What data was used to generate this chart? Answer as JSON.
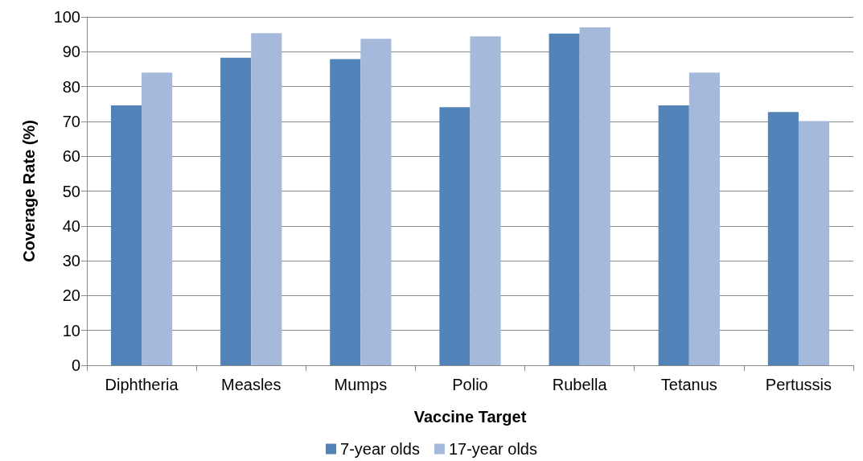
{
  "chart_data": {
    "type": "bar",
    "xlabel": "Vaccine Target",
    "ylabel": "Coverage Rate (%)",
    "categories": [
      "Diphtheria",
      "Measles",
      "Mumps",
      "Polio",
      "Rubella",
      "Tetanus",
      "Pertussis"
    ],
    "series": [
      {
        "name": "7-year olds",
        "color": "#5283b8",
        "values": [
          74.6,
          88.3,
          87.9,
          74.1,
          95.2,
          74.6,
          72.7
        ]
      },
      {
        "name": "17-year olds",
        "color": "#a5b9da",
        "values": [
          84.0,
          95.3,
          93.7,
          94.4,
          97.0,
          84.0,
          70.1
        ]
      }
    ],
    "ylim": [
      0,
      100
    ],
    "yticks": [
      0,
      10,
      20,
      30,
      40,
      50,
      60,
      70,
      80,
      90,
      100
    ],
    "grid": "y",
    "legend": "bottom"
  }
}
